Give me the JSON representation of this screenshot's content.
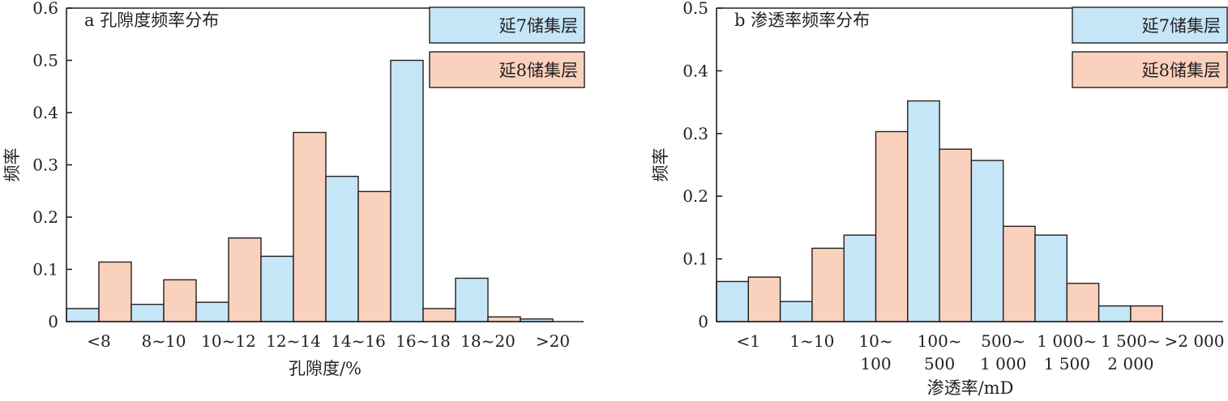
{
  "colors": {
    "yan7": "#c5e6f7",
    "yan8": "#f9d1bd",
    "axis": "#231f20"
  },
  "chart_data": [
    {
      "type": "bar",
      "title": "a 孔隙度频率分布",
      "xlabel": "孔隙度/%",
      "ylabel": "频率",
      "ylim": [
        0,
        0.6
      ],
      "yticks": [
        "0",
        "0.1",
        "0.2",
        "0.3",
        "0.4",
        "0.5",
        "0.6"
      ],
      "categories": [
        [
          "<8"
        ],
        [
          "8~10"
        ],
        [
          "10~12"
        ],
        [
          "12~14"
        ],
        [
          "14~16"
        ],
        [
          "16~18"
        ],
        [
          "18~20"
        ],
        [
          ">20"
        ]
      ],
      "legend_position": "top-right",
      "series": [
        {
          "name": "延7储集层",
          "values": [
            0.025,
            0.033,
            0.037,
            0.125,
            0.278,
            0.5,
            0.083,
            0.005
          ]
        },
        {
          "name": "延8储集层",
          "values": [
            0.114,
            0.08,
            0.16,
            0.362,
            0.249,
            0.025,
            0.009,
            0
          ]
        }
      ]
    },
    {
      "type": "bar",
      "title": "b 渗透率频率分布",
      "xlabel": "渗透率/mD",
      "ylabel": "频率",
      "ylim": [
        0,
        0.5
      ],
      "yticks": [
        "0",
        "0.1",
        "0.2",
        "0.3",
        "0.4",
        "0.5"
      ],
      "categories": [
        [
          "<1"
        ],
        [
          "1~10"
        ],
        [
          "10~",
          "100"
        ],
        [
          "100~",
          "500"
        ],
        [
          "500~",
          "1 000"
        ],
        [
          "1 000~",
          "1 500"
        ],
        [
          "1 500~",
          "2 000"
        ],
        [
          ">2 000"
        ]
      ],
      "legend_position": "top-right",
      "series": [
        {
          "name": "延7储集层",
          "values": [
            0.064,
            0.032,
            0.138,
            0.352,
            0.257,
            0.138,
            0.025,
            0
          ]
        },
        {
          "name": "延8储集层",
          "values": [
            0.071,
            0.117,
            0.303,
            0.275,
            0.152,
            0.061,
            0.025,
            0
          ]
        }
      ]
    }
  ]
}
